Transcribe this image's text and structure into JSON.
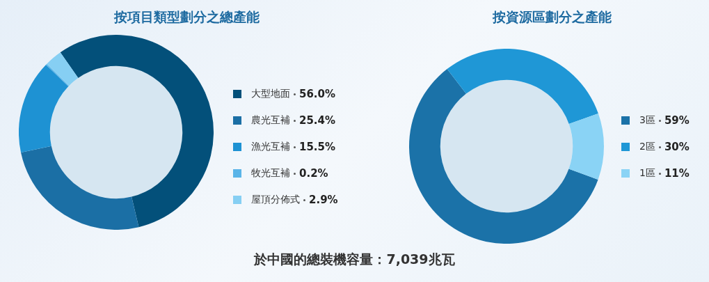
{
  "chart_data": [
    {
      "type": "donut",
      "title": "按項目類型劃分之總產能",
      "categories": [
        "大型地面",
        "農光互補",
        "漁光互補",
        "牧光互補",
        "屋頂分佈式"
      ],
      "values": [
        56.0,
        25.4,
        15.5,
        0.2,
        2.9
      ],
      "value_labels": [
        "56.0%",
        "25.4%",
        "15.5%",
        "0.2%",
        "2.9%"
      ],
      "colors": [
        "#03507a",
        "#1b6fa5",
        "#1e92d3",
        "#5ab4e8",
        "#86cff3"
      ],
      "legend": "right",
      "annotations": [
        "於中國的總裝機容量：7,039兆瓦"
      ]
    },
    {
      "type": "donut",
      "title": "按資源區劃分之產能",
      "categories": [
        "3區",
        "2區",
        "1區"
      ],
      "values": [
        59,
        30,
        11
      ],
      "value_labels": [
        "59%",
        "30%",
        "11%"
      ],
      "colors": [
        "#1b72a8",
        "#1f97d6",
        "#8ad3f5"
      ],
      "legend": "right"
    }
  ]
}
